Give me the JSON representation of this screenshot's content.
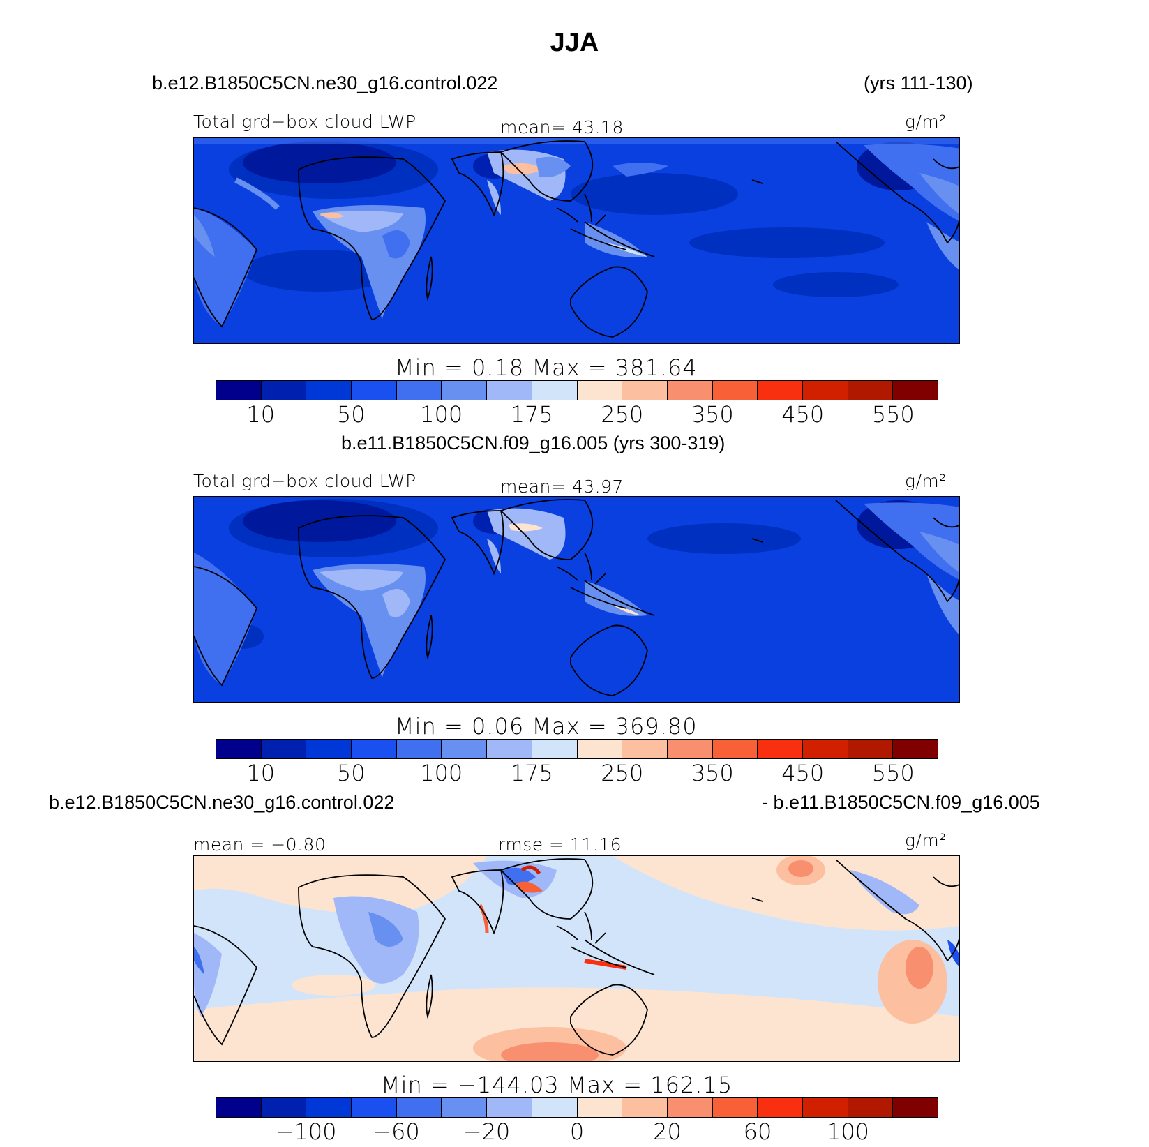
{
  "title": "JJA",
  "panels": [
    {
      "case_left": "b.e12.B1850C5CN.ne30_g16.control.022",
      "case_right": "(yrs 111-130)",
      "left_label": "Total grd−box cloud LWP",
      "center_label": "mean=  43.18",
      "units": "g/m²",
      "minmax": "Min =    0.18  Max = 381.64",
      "field": "Total grid-box cloud liquid water path",
      "stats": {
        "mean": 43.18,
        "min": 0.18,
        "max": 381.64
      },
      "colorbar": {
        "colors": [
          "#00008c",
          "#0020b0",
          "#0038d8",
          "#1a50f0",
          "#4070f0",
          "#6890f0",
          "#a0b8f8",
          "#d2e4fa",
          "#fde4d0",
          "#fcc0a0",
          "#f89070",
          "#f86038",
          "#f83010",
          "#d02000",
          "#b01800",
          "#800000"
        ],
        "ticks": [
          "10",
          "50",
          "100",
          "175",
          "250",
          "350",
          "450",
          "550"
        ]
      }
    },
    {
      "case_left": "b.e11.B1850C5CN.f09_g16.005 (yrs 300-319)",
      "case_right": "",
      "left_label": "Total grd−box cloud LWP",
      "center_label": "mean=  43.97",
      "units": "g/m²",
      "minmax": "Min =    0.06  Max = 369.80",
      "field": "Total grid-box cloud liquid water path",
      "stats": {
        "mean": 43.97,
        "min": 0.06,
        "max": 369.8
      },
      "colorbar": {
        "colors": [
          "#00008c",
          "#0020b0",
          "#0038d8",
          "#1a50f0",
          "#4070f0",
          "#6890f0",
          "#a0b8f8",
          "#d2e4fa",
          "#fde4d0",
          "#fcc0a0",
          "#f89070",
          "#f86038",
          "#f83010",
          "#d02000",
          "#b01800",
          "#800000"
        ],
        "ticks": [
          "10",
          "50",
          "100",
          "175",
          "250",
          "350",
          "450",
          "550"
        ]
      }
    },
    {
      "case_left": "b.e12.B1850C5CN.ne30_g16.control.022",
      "case_right": "- b.e11.B1850C5CN.f09_g16.005",
      "left_label": "mean =   −0.80",
      "center_label": "rmse =  11.16",
      "units": "g/m²",
      "minmax": "Min = −144.03  Max =  162.15",
      "field": "Difference in total grid-box cloud liquid water path",
      "stats": {
        "mean": -0.8,
        "rmse": 11.16,
        "min": -144.03,
        "max": 162.15
      },
      "colorbar": {
        "colors": [
          "#00008c",
          "#0020b0",
          "#0038d8",
          "#1a50f0",
          "#4070f0",
          "#6890f0",
          "#a0b8f8",
          "#d2e4fa",
          "#fde4d0",
          "#fcc0a0",
          "#f89070",
          "#f86038",
          "#f83010",
          "#d02000",
          "#b01800",
          "#800000"
        ],
        "ticks": [
          "−100",
          "−60",
          "−20",
          "0",
          "20",
          "60",
          "100"
        ]
      }
    }
  ]
}
